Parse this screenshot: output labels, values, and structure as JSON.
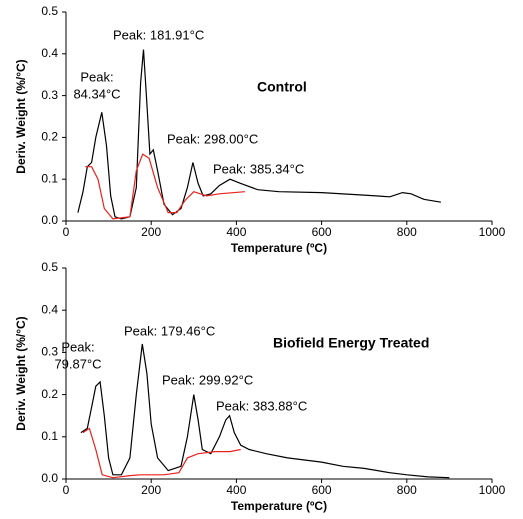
{
  "chart_data": [
    {
      "type": "line",
      "title": "Control",
      "xlabel": "Temperature (ºC)",
      "ylabel": "Deriv. Weight (%/°C)",
      "xlim": [
        0,
        1000
      ],
      "xticks": [
        0,
        200,
        400,
        600,
        800,
        1000
      ],
      "ylim": [
        0,
        0.5
      ],
      "yticks": [
        {
          "value": 0,
          "label": "0.0"
        },
        0.1,
        0.2,
        0.3,
        0.4,
        0.5
      ],
      "annotations": [
        [
          "Peak:",
          "84.34°C"
        ],
        [
          "Peak: 181.91°C"
        ],
        [
          "Peak: 298.00°C"
        ],
        [
          "Peak: 385.34°C"
        ]
      ],
      "series": [
        {
          "color": "#000000",
          "x": [
            28,
            40,
            50,
            60,
            70,
            84,
            95,
            105,
            115,
            130,
            150,
            165,
            175,
            182,
            190,
            197,
            205,
            215,
            230,
            250,
            270,
            285,
            298,
            310,
            322,
            340,
            360,
            385,
            410,
            450,
            500,
            600,
            700,
            760,
            790,
            810,
            840,
            880
          ],
          "values": [
            0.02,
            0.07,
            0.13,
            0.14,
            0.2,
            0.26,
            0.18,
            0.06,
            0.01,
            0.005,
            0.01,
            0.08,
            0.33,
            0.41,
            0.28,
            0.16,
            0.17,
            0.12,
            0.04,
            0.015,
            0.03,
            0.08,
            0.14,
            0.09,
            0.06,
            0.065,
            0.085,
            0.1,
            0.09,
            0.075,
            0.07,
            0.068,
            0.062,
            0.058,
            0.068,
            0.065,
            0.052,
            0.045
          ]
        },
        {
          "color": "#e8221c",
          "x": [
            45,
            60,
            75,
            90,
            110,
            150,
            165,
            180,
            195,
            215,
            240,
            260,
            280,
            300,
            330,
            360,
            420
          ],
          "values": [
            0.13,
            0.13,
            0.1,
            0.03,
            0.005,
            0.01,
            0.12,
            0.16,
            0.15,
            0.08,
            0.02,
            0.02,
            0.05,
            0.07,
            0.06,
            0.065,
            0.07
          ]
        }
      ]
    },
    {
      "type": "line",
      "title": "Biofield Energy Treated",
      "xlabel": "Temperature (ºC)",
      "ylabel": "Deriv. Weight (%/°C)",
      "xlim": [
        0,
        1000
      ],
      "xticks": [
        0,
        200,
        400,
        600,
        800,
        1000
      ],
      "ylim": [
        0,
        0.5
      ],
      "yticks": [
        {
          "value": 0,
          "label": "0.0"
        },
        0.1,
        0.2,
        0.3,
        0.4,
        0.5
      ],
      "annotations": [
        [
          "Peak:",
          "79.87°C"
        ],
        [
          "Peak: 179.46°C"
        ],
        [
          "Peak: 299.92°C"
        ],
        [
          "Peak: 383.88°C"
        ]
      ],
      "series": [
        {
          "color": "#000000",
          "x": [
            35,
            50,
            60,
            70,
            80,
            90,
            100,
            110,
            130,
            150,
            165,
            179,
            190,
            200,
            215,
            240,
            270,
            285,
            300,
            310,
            320,
            340,
            360,
            375,
            384,
            395,
            410,
            430,
            470,
            520,
            560,
            600,
            650,
            700,
            760,
            800,
            850,
            900
          ],
          "values": [
            0.11,
            0.12,
            0.17,
            0.22,
            0.23,
            0.15,
            0.05,
            0.01,
            0.01,
            0.05,
            0.2,
            0.32,
            0.25,
            0.13,
            0.05,
            0.02,
            0.03,
            0.1,
            0.2,
            0.14,
            0.07,
            0.06,
            0.1,
            0.14,
            0.15,
            0.11,
            0.08,
            0.07,
            0.06,
            0.05,
            0.045,
            0.04,
            0.03,
            0.025,
            0.015,
            0.01,
            0.005,
            0.003
          ]
        },
        {
          "color": "#e8221c",
          "x": [
            40,
            55,
            70,
            85,
            110,
            150,
            175,
            230,
            265,
            285,
            310,
            350,
            385,
            410
          ],
          "values": [
            0.11,
            0.12,
            0.07,
            0.01,
            0.003,
            0.008,
            0.01,
            0.01,
            0.015,
            0.05,
            0.06,
            0.065,
            0.065,
            0.07
          ]
        }
      ]
    }
  ]
}
